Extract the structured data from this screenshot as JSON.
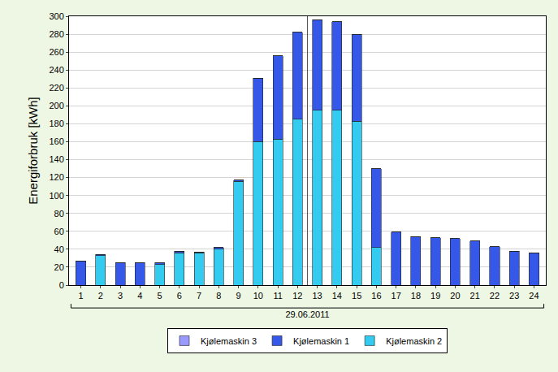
{
  "chart_data": {
    "type": "bar",
    "stacked": true,
    "ylabel": "Energiforbruk [kWh]",
    "xlabel": "29.06.2011",
    "categories": [
      "1",
      "2",
      "3",
      "4",
      "5",
      "6",
      "7",
      "8",
      "9",
      "10",
      "11",
      "12",
      "13",
      "14",
      "15",
      "16",
      "17",
      "18",
      "19",
      "20",
      "21",
      "22",
      "23",
      "24"
    ],
    "series": [
      {
        "name": "Kjølemaskin 2",
        "color": "#33ccf0",
        "values": [
          0,
          33,
          0,
          0,
          23,
          36,
          36,
          40,
          116,
          160,
          163,
          185,
          195,
          195,
          183,
          42,
          0,
          0,
          0,
          0,
          0,
          0,
          0,
          0
        ]
      },
      {
        "name": "Kjølemaskin 1",
        "color": "#3558e8",
        "values": [
          27,
          1,
          25,
          25,
          2,
          2,
          1,
          2,
          1,
          71,
          93,
          97,
          101,
          99,
          97,
          88,
          59,
          54,
          53,
          52,
          49,
          43,
          38,
          36
        ]
      },
      {
        "name": "Kjølemaskin 3",
        "color": "#9999ff",
        "values": [
          0,
          0,
          0,
          0,
          0,
          0,
          0,
          0,
          0,
          0,
          0,
          0,
          0,
          0,
          0,
          0,
          0,
          0,
          0,
          0,
          0,
          0,
          0,
          0
        ]
      }
    ],
    "ylim": [
      0,
      300
    ],
    "yticks": [
      0,
      20,
      40,
      60,
      80,
      100,
      120,
      140,
      160,
      180,
      200,
      220,
      240,
      260,
      280,
      300
    ],
    "grid": true,
    "legend": "bottom"
  }
}
